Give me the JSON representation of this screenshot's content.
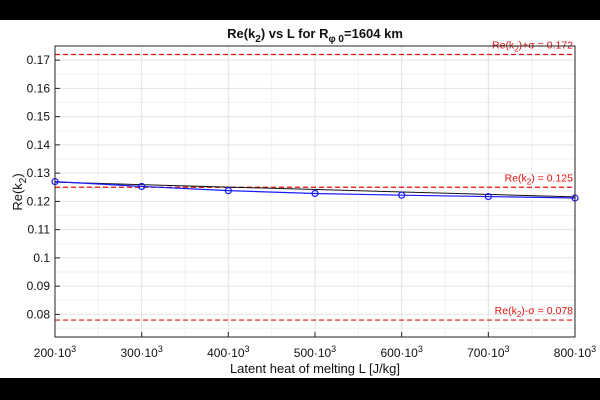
{
  "chart_data": {
    "type": "line",
    "title": "Re(k₂) vs L for Rφ₀=1604 km",
    "title_parts": {
      "a": "Re(k",
      "a_sub": "2",
      "b": ") vs L for R",
      "b_sub": "φ 0",
      "c": "=1604 km"
    },
    "xlabel": "Latent heat of melting L [J/kg]",
    "ylabel": "Re(k₂)",
    "ylabel_parts": {
      "main": "Re(k",
      "sub": "2",
      "close": ")"
    },
    "xlim": [
      200000,
      800000
    ],
    "ylim": [
      0.072,
      0.175
    ],
    "x_ticks": [
      200000,
      300000,
      400000,
      500000,
      600000,
      700000,
      800000
    ],
    "x_tick_labels": [
      {
        "mant": "200·10",
        "exp": "3"
      },
      {
        "mant": "300·10",
        "exp": "3"
      },
      {
        "mant": "400·10",
        "exp": "3"
      },
      {
        "mant": "500·10",
        "exp": "3"
      },
      {
        "mant": "600·10",
        "exp": "3"
      },
      {
        "mant": "700·10",
        "exp": "3"
      },
      {
        "mant": "800·10",
        "exp": "3"
      }
    ],
    "y_ticks": [
      0.08,
      0.09,
      0.1,
      0.11,
      0.12,
      0.13,
      0.14,
      0.15,
      0.16,
      0.17
    ],
    "y_tick_labels": [
      "0.08",
      "0.09",
      "0.1",
      "0.11",
      "0.12",
      "0.13",
      "0.14",
      "0.15",
      "0.16",
      "0.17"
    ],
    "grid": true,
    "series": [
      {
        "name": "Re(k₂)",
        "color": "#1a1aff",
        "marker": "circle",
        "x": [
          200000,
          300000,
          400000,
          500000,
          600000,
          700000,
          800000
        ],
        "y": [
          0.127,
          0.1253,
          0.1238,
          0.1228,
          0.1222,
          0.1217,
          0.1212
        ]
      }
    ],
    "reference_lines": [
      {
        "name": "upper",
        "y": 0.172,
        "color": "#e01010",
        "style": "dashed",
        "label_main": "Re(k",
        "label_sub": "2",
        "label_rest": ")+σ = 0.172"
      },
      {
        "name": "mean",
        "y": 0.125,
        "color": "#e01010",
        "style": "dashed",
        "label_main": "Re(k",
        "label_sub": "2",
        "label_rest": ") = 0.125"
      },
      {
        "name": "lower",
        "y": 0.078,
        "color": "#e01010",
        "style": "dashed",
        "label_main": "Re(k",
        "label_sub": "2",
        "label_rest": ")-σ = 0.078"
      }
    ],
    "trend_line": {
      "color": "#111111",
      "x": [
        200000,
        800000
      ],
      "y": [
        0.1268,
        0.1216
      ]
    }
  }
}
